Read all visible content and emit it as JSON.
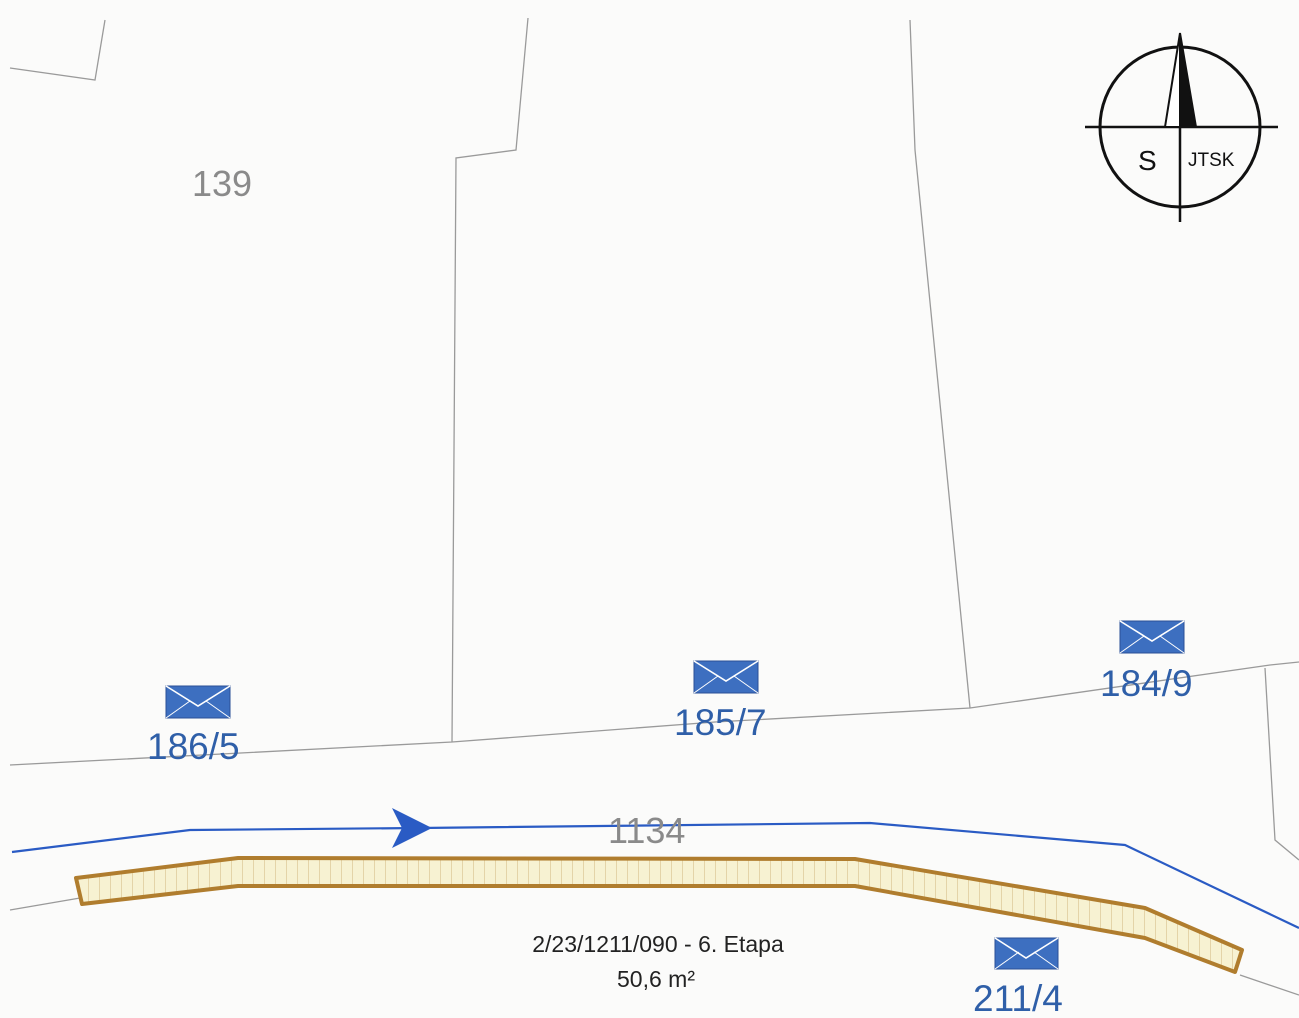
{
  "parcels": {
    "p139": "139",
    "p1134": "1134"
  },
  "owned_parcels": {
    "p186_5": "186/5",
    "p185_7": "185/7",
    "p184_9": "184/9",
    "p211_4": "211/4"
  },
  "easement": {
    "code": "2/23/1211/090 - 6. Etapa",
    "area": "50,6 m²"
  },
  "compass": {
    "north_letter": "S",
    "system": "JTSK"
  },
  "colors": {
    "boundary": "#9a9a9a",
    "owned_label": "#2f5fa8",
    "envelope_fill": "#3d6fc0",
    "pipeline": "#2a5bc4",
    "easement_outline": "#b07d2e",
    "easement_fill": "#f6f0c8"
  },
  "icons": [
    "envelope-icon",
    "flow-arrow-icon",
    "north-arrow-icon"
  ]
}
